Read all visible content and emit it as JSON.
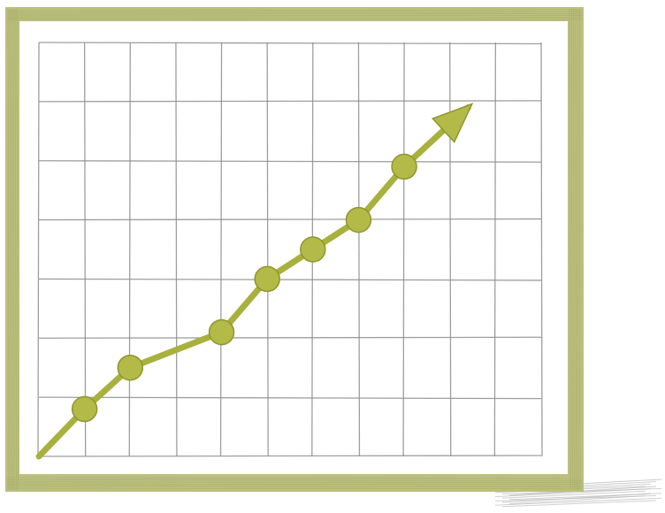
{
  "chart_data": {
    "type": "line",
    "title": "",
    "xlabel": "",
    "ylabel": "",
    "grid": true,
    "legend": "none",
    "xlim": [
      0,
      11
    ],
    "ylim": [
      0,
      7
    ],
    "series": [
      {
        "values": [
          {
            "x": 0,
            "y": 0
          },
          {
            "x": 1,
            "y": 0.8
          },
          {
            "x": 2,
            "y": 1.5
          },
          {
            "x": 4,
            "y": 2.1
          },
          {
            "x": 5,
            "y": 3.0
          },
          {
            "x": 6,
            "y": 3.5
          },
          {
            "x": 7,
            "y": 4.0
          },
          {
            "x": 8,
            "y": 4.9
          },
          {
            "x": 9.4,
            "y": 5.9
          }
        ],
        "marker_points": [
          {
            "x": 1,
            "y": 0.8
          },
          {
            "x": 2,
            "y": 1.5
          },
          {
            "x": 4,
            "y": 2.1
          },
          {
            "x": 5,
            "y": 3.0
          },
          {
            "x": 6,
            "y": 3.5
          },
          {
            "x": 7,
            "y": 4.0
          },
          {
            "x": 8,
            "y": 4.9
          }
        ],
        "arrowhead": true
      }
    ],
    "style": "hand-drawn pencil sketch"
  },
  "colors": {
    "frame": "#b8bd78",
    "frame_dark": "#9ea55a",
    "grid": "#8e8e8e",
    "line": "#a9b13e",
    "marker": "#b3ba47",
    "marker_edge": "#8e962d",
    "paper": "#ffffff",
    "shadow": "#b5b5b5"
  }
}
